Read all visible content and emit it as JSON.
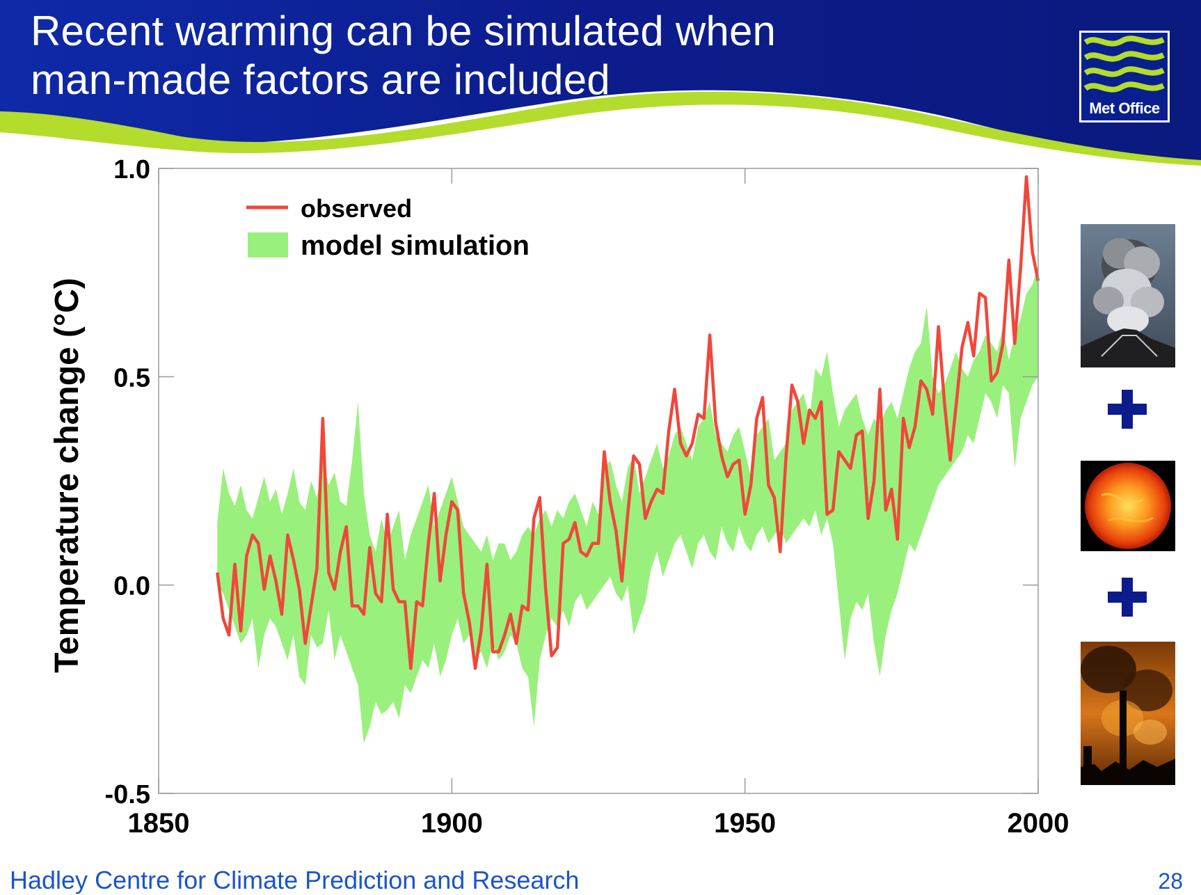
{
  "slide": {
    "title_line1": "Recent warming can be simulated when",
    "title_line2": "man-made factors are included",
    "logo_text": "Met Office",
    "footer_text": "Hadley Centre for Climate Prediction and Research",
    "page_number": "28"
  },
  "side_images": [
    {
      "icon": "volcano-eruption-icon"
    },
    {
      "icon": "sun-icon"
    },
    {
      "icon": "industrial-smoke-icon"
    }
  ],
  "side_connectors": [
    "plus-icon",
    "plus-icon"
  ],
  "colors": {
    "banner_blue": "#0c1c8c",
    "banner_green": "#b4dc2c",
    "observed": "#f0473a",
    "model": "#9af07c",
    "footer_text": "#1a55c8",
    "plus": "#0c1c8c"
  },
  "chart_data": {
    "type": "area",
    "title": "",
    "xlabel": "",
    "ylabel": "Temperature change (°C)",
    "xlim": [
      1850,
      2000
    ],
    "ylim": [
      -0.5,
      1.0
    ],
    "xticks": [
      1850,
      1900,
      1950,
      2000
    ],
    "xtick_labels": [
      "1850",
      "1900",
      "1950",
      "2000"
    ],
    "yticks": [
      -0.5,
      0.0,
      0.5,
      1.0
    ],
    "ytick_labels": [
      "-0.5",
      "0.0",
      "0.5",
      "1.0"
    ],
    "grid": false,
    "legend": {
      "position": "top-left",
      "entries": [
        "observed",
        "model simulation"
      ]
    },
    "band_series": {
      "name": "model simulation",
      "x": [
        1860,
        1861,
        1862,
        1863,
        1864,
        1865,
        1866,
        1867,
        1868,
        1869,
        1870,
        1871,
        1872,
        1873,
        1874,
        1875,
        1876,
        1877,
        1878,
        1879,
        1880,
        1881,
        1882,
        1883,
        1884,
        1885,
        1886,
        1887,
        1888,
        1889,
        1890,
        1891,
        1892,
        1893,
        1894,
        1895,
        1896,
        1897,
        1898,
        1899,
        1900,
        1901,
        1902,
        1903,
        1904,
        1905,
        1906,
        1907,
        1908,
        1909,
        1910,
        1911,
        1912,
        1913,
        1914,
        1915,
        1916,
        1917,
        1918,
        1919,
        1920,
        1921,
        1922,
        1923,
        1924,
        1925,
        1926,
        1927,
        1928,
        1929,
        1930,
        1931,
        1932,
        1933,
        1934,
        1935,
        1936,
        1937,
        1938,
        1939,
        1940,
        1941,
        1942,
        1943,
        1944,
        1945,
        1946,
        1947,
        1948,
        1949,
        1950,
        1951,
        1952,
        1953,
        1954,
        1955,
        1956,
        1957,
        1958,
        1959,
        1960,
        1961,
        1962,
        1963,
        1964,
        1965,
        1966,
        1967,
        1968,
        1969,
        1970,
        1971,
        1972,
        1973,
        1974,
        1975,
        1976,
        1977,
        1978,
        1979,
        1980,
        1981,
        1982,
        1983,
        1984,
        1985,
        1986,
        1987,
        1988,
        1989,
        1990,
        1991,
        1992,
        1993,
        1994,
        1995,
        1996,
        1997,
        1998,
        1999,
        2000
      ],
      "upper": [
        0.15,
        0.28,
        0.22,
        0.19,
        0.24,
        0.18,
        0.16,
        0.21,
        0.26,
        0.2,
        0.23,
        0.17,
        0.22,
        0.28,
        0.2,
        0.18,
        0.25,
        0.21,
        0.3,
        0.24,
        0.27,
        0.2,
        0.19,
        0.3,
        0.44,
        0.22,
        0.12,
        0.08,
        0.16,
        0.1,
        0.14,
        0.18,
        0.06,
        0.12,
        0.16,
        0.2,
        0.24,
        0.14,
        0.18,
        0.22,
        0.26,
        0.2,
        0.14,
        0.12,
        0.1,
        0.08,
        0.12,
        0.06,
        0.1,
        0.1,
        0.06,
        0.08,
        0.12,
        0.14,
        0.12,
        0.16,
        0.18,
        0.14,
        0.18,
        0.16,
        0.2,
        0.22,
        0.18,
        0.14,
        0.2,
        0.17,
        0.28,
        0.3,
        0.24,
        0.2,
        0.28,
        0.31,
        0.22,
        0.26,
        0.3,
        0.34,
        0.28,
        0.31,
        0.36,
        0.38,
        0.34,
        0.3,
        0.38,
        0.4,
        0.44,
        0.36,
        0.34,
        0.32,
        0.36,
        0.38,
        0.32,
        0.26,
        0.36,
        0.38,
        0.4,
        0.3,
        0.32,
        0.34,
        0.42,
        0.44,
        0.46,
        0.4,
        0.52,
        0.5,
        0.56,
        0.46,
        0.38,
        0.42,
        0.44,
        0.46,
        0.4,
        0.36,
        0.4,
        0.38,
        0.42,
        0.44,
        0.4,
        0.46,
        0.52,
        0.56,
        0.58,
        0.67,
        0.5,
        0.46,
        0.48,
        0.52,
        0.56,
        0.52,
        0.5,
        0.54,
        0.56,
        0.6,
        0.58,
        0.56,
        0.62,
        0.54,
        0.6,
        0.64,
        0.7,
        0.72,
        0.77
      ],
      "lower": [
        0.0,
        -0.02,
        -0.06,
        -0.1,
        -0.14,
        -0.12,
        -0.08,
        -0.2,
        -0.12,
        -0.08,
        -0.1,
        -0.14,
        -0.18,
        -0.12,
        -0.22,
        -0.24,
        -0.12,
        -0.15,
        -0.14,
        -0.06,
        -0.18,
        -0.12,
        -0.16,
        -0.2,
        -0.24,
        -0.38,
        -0.34,
        -0.28,
        -0.31,
        -0.3,
        -0.28,
        -0.32,
        -0.24,
        -0.26,
        -0.22,
        -0.18,
        -0.2,
        -0.14,
        -0.22,
        -0.18,
        -0.12,
        -0.08,
        -0.14,
        -0.12,
        -0.18,
        -0.16,
        -0.2,
        -0.14,
        -0.18,
        -0.16,
        -0.12,
        -0.14,
        -0.2,
        -0.22,
        -0.34,
        -0.18,
        -0.12,
        -0.08,
        -0.1,
        -0.06,
        -0.1,
        -0.04,
        -0.02,
        -0.06,
        -0.04,
        -0.02,
        0.0,
        0.02,
        -0.02,
        -0.04,
        0.0,
        -0.12,
        -0.08,
        -0.04,
        0.04,
        0.08,
        0.02,
        0.06,
        0.1,
        0.12,
        0.08,
        0.04,
        0.1,
        0.12,
        0.08,
        0.06,
        0.14,
        0.1,
        0.08,
        0.14,
        0.1,
        0.08,
        0.12,
        0.14,
        0.1,
        0.12,
        0.14,
        0.1,
        0.12,
        0.14,
        0.16,
        0.14,
        0.18,
        0.12,
        0.16,
        0.1,
        -0.04,
        -0.18,
        -0.08,
        -0.04,
        -0.06,
        -0.02,
        -0.14,
        -0.22,
        -0.12,
        -0.06,
        -0.02,
        0.04,
        0.1,
        0.08,
        0.12,
        0.16,
        0.2,
        0.24,
        0.26,
        0.28,
        0.3,
        0.32,
        0.36,
        0.34,
        0.4,
        0.46,
        0.44,
        0.4,
        0.48,
        0.46,
        0.28,
        0.4,
        0.44,
        0.48,
        0.5
      ]
    },
    "series": [
      {
        "name": "observed",
        "x": [
          1860,
          1861,
          1862,
          1863,
          1864,
          1865,
          1866,
          1867,
          1868,
          1869,
          1870,
          1871,
          1872,
          1873,
          1874,
          1875,
          1876,
          1877,
          1878,
          1879,
          1880,
          1881,
          1882,
          1883,
          1884,
          1885,
          1886,
          1887,
          1888,
          1889,
          1890,
          1891,
          1892,
          1893,
          1894,
          1895,
          1896,
          1897,
          1898,
          1899,
          1900,
          1901,
          1902,
          1903,
          1904,
          1905,
          1906,
          1907,
          1908,
          1909,
          1910,
          1911,
          1912,
          1913,
          1914,
          1915,
          1916,
          1917,
          1918,
          1919,
          1920,
          1921,
          1922,
          1923,
          1924,
          1925,
          1926,
          1927,
          1928,
          1929,
          1930,
          1931,
          1932,
          1933,
          1934,
          1935,
          1936,
          1937,
          1938,
          1939,
          1940,
          1941,
          1942,
          1943,
          1944,
          1945,
          1946,
          1947,
          1948,
          1949,
          1950,
          1951,
          1952,
          1953,
          1954,
          1955,
          1956,
          1957,
          1958,
          1959,
          1960,
          1961,
          1962,
          1963,
          1964,
          1965,
          1966,
          1967,
          1968,
          1969,
          1970,
          1971,
          1972,
          1973,
          1974,
          1975,
          1976,
          1977,
          1978,
          1979,
          1980,
          1981,
          1982,
          1983,
          1984,
          1985,
          1986,
          1987,
          1988,
          1989,
          1990,
          1991,
          1992,
          1993,
          1994,
          1995,
          1996,
          1997,
          1998,
          1999,
          2000
        ],
        "y": [
          0.03,
          -0.08,
          -0.12,
          0.05,
          -0.11,
          0.07,
          0.12,
          0.1,
          -0.01,
          0.07,
          0.01,
          -0.07,
          0.12,
          0.06,
          -0.01,
          -0.14,
          -0.05,
          0.04,
          0.4,
          0.03,
          -0.01,
          0.08,
          0.14,
          -0.05,
          -0.05,
          -0.07,
          0.09,
          -0.02,
          -0.04,
          0.17,
          -0.01,
          -0.04,
          -0.04,
          -0.2,
          -0.04,
          -0.05,
          0.1,
          0.22,
          0.01,
          0.12,
          0.2,
          0.18,
          -0.02,
          -0.09,
          -0.2,
          -0.11,
          0.05,
          -0.16,
          -0.16,
          -0.12,
          -0.07,
          -0.14,
          -0.05,
          -0.06,
          0.16,
          0.21,
          -0.01,
          -0.17,
          -0.15,
          0.1,
          0.11,
          0.15,
          0.08,
          0.07,
          0.1,
          0.1,
          0.32,
          0.2,
          0.13,
          0.01,
          0.17,
          0.31,
          0.29,
          0.16,
          0.2,
          0.23,
          0.22,
          0.37,
          0.47,
          0.34,
          0.31,
          0.34,
          0.41,
          0.4,
          0.6,
          0.39,
          0.31,
          0.26,
          0.29,
          0.3,
          0.17,
          0.24,
          0.4,
          0.45,
          0.24,
          0.21,
          0.08,
          0.31,
          0.48,
          0.44,
          0.34,
          0.42,
          0.4,
          0.44,
          0.17,
          0.18,
          0.32,
          0.3,
          0.28,
          0.36,
          0.37,
          0.16,
          0.25,
          0.47,
          0.18,
          0.23,
          0.11,
          0.4,
          0.33,
          0.38,
          0.49,
          0.47,
          0.41,
          0.62,
          0.44,
          0.3,
          0.43,
          0.57,
          0.63,
          0.55,
          0.7,
          0.69,
          0.49,
          0.51,
          0.58,
          0.78,
          0.58,
          0.76,
          0.98,
          0.8,
          0.73
        ]
      }
    ]
  }
}
